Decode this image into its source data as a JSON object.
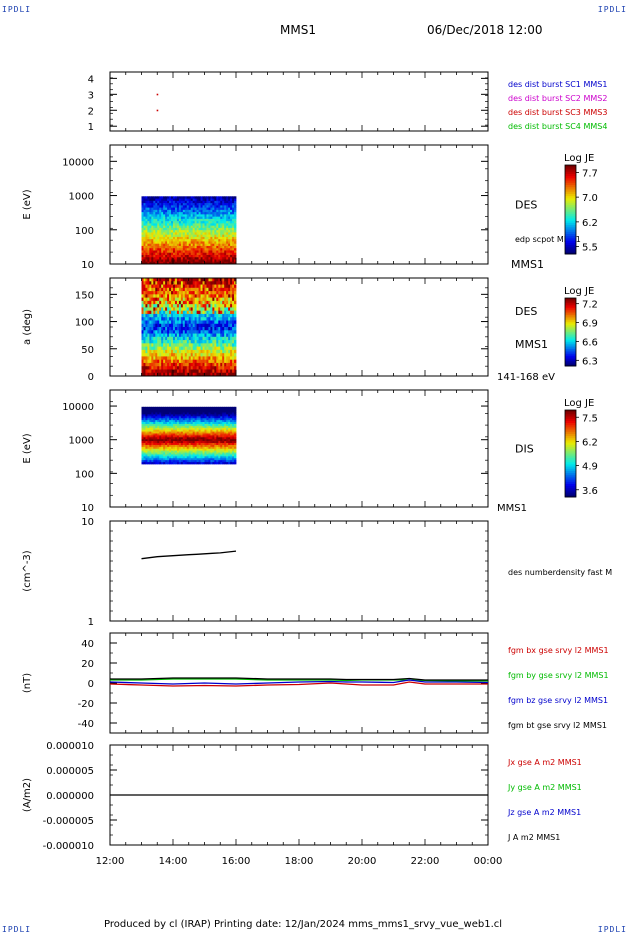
{
  "header": {
    "corner_tl": "IPDLI",
    "corner_tr": "IPDLI",
    "corner_bl": "IPDLI",
    "corner_br": "IPDLI",
    "spacecraft": "MMS1",
    "datetime": "06/Dec/2018 12:00"
  },
  "footer": {
    "text": "Produced by cl (IRAP)   Printing date: 12/Jan/2024   mms_mms1_srvy_vue_web1.cl"
  },
  "colors": {
    "blue": "#0000cc",
    "magenta": "#cc00cc",
    "red": "#cc0000",
    "green": "#00bb00",
    "black": "#000000"
  },
  "time_axis": {
    "start_hour": 12,
    "end_hour": 24,
    "tick_labels": [
      "12:00",
      "14:00",
      "16:00",
      "18:00",
      "20:00",
      "22:00",
      "00:00"
    ]
  },
  "chart_data": [
    {
      "type": "scatter",
      "ylabel": "",
      "ylim": [
        0.7,
        4.4
      ],
      "ytick_labels": [
        "1",
        "2",
        "3",
        "4"
      ],
      "ytick_values": [
        1,
        2,
        3,
        4
      ],
      "points": [
        {
          "t": 13.5,
          "y": 3.0,
          "color": "red"
        },
        {
          "t": 13.5,
          "y": 2.0,
          "color": "red"
        }
      ],
      "legend": [
        {
          "label": "des dist burst SC1 MMS1",
          "color": "blue"
        },
        {
          "label": "des dist burst SC2 MMS2",
          "color": "magenta"
        },
        {
          "label": "des dist burst SC3 MMS3",
          "color": "red"
        },
        {
          "label": "des dist burst SC4 MMS4",
          "color": "green"
        }
      ]
    },
    {
      "type": "heatmap",
      "ylabel": "E (eV)",
      "yscale": "log",
      "ylim": [
        10,
        30000
      ],
      "ytick_labels": [
        "10",
        "100",
        "1000",
        "10000"
      ],
      "ytick_values": [
        10,
        100,
        1000,
        10000
      ],
      "data_t_range": [
        13.0,
        16.0
      ],
      "data_y_range": [
        10,
        950
      ],
      "pattern": "energy",
      "side_labels": [
        {
          "text": "DES",
          "pos": "mid"
        },
        {
          "text": "edp scpot MMS1",
          "pos": "low",
          "small": true
        }
      ],
      "colorbar": {
        "title": "Log JE",
        "ticks": [
          "7.7",
          "7.0",
          "6.2",
          "5.5"
        ]
      }
    },
    {
      "type": "heatmap",
      "ylabel": "a (deg)",
      "yscale": "linear",
      "ylim": [
        0,
        180
      ],
      "ytick_labels": [
        "0",
        "50",
        "100",
        "150"
      ],
      "ytick_values": [
        0,
        50,
        100,
        150
      ],
      "data_t_range": [
        13.0,
        16.0
      ],
      "data_y_range": [
        0,
        180
      ],
      "pattern": "pitch",
      "side_labels": [
        {
          "text": "DES",
          "pos": "upper"
        },
        {
          "text": "MMS1",
          "pos": "lower"
        }
      ],
      "top_right_label": "MMS1",
      "bottom_right_label": "141-168 eV",
      "colorbar": {
        "title": "Log JE",
        "ticks": [
          "7.2",
          "6.9",
          "6.6",
          "6.3"
        ]
      }
    },
    {
      "type": "heatmap",
      "ylabel": "E (eV)",
      "yscale": "log",
      "ylim": [
        10,
        30000
      ],
      "ytick_labels": [
        "10",
        "100",
        "1000",
        "10000"
      ],
      "ytick_values": [
        10,
        100,
        1000,
        10000
      ],
      "data_t_range": [
        13.0,
        16.0
      ],
      "data_y_range": [
        190,
        9500
      ],
      "pattern": "ion",
      "side_labels": [
        {
          "text": "DIS",
          "pos": "mid"
        }
      ],
      "bottom_right_label": "MMS1",
      "colorbar": {
        "title": "Log JE",
        "ticks": [
          "7.5",
          "6.2",
          "4.9",
          "3.6"
        ]
      }
    },
    {
      "type": "line",
      "ylabel": "(cm^-3)",
      "yscale": "log",
      "ylim": [
        1,
        10
      ],
      "ytick_labels": [
        "1",
        "10"
      ],
      "ytick_values": [
        1,
        10
      ],
      "series": [
        {
          "name": "des numberdensity fast MMS1",
          "color": "black",
          "t": [
            13.0,
            13.25,
            13.5,
            13.75,
            14.0,
            14.25,
            14.5,
            14.75,
            15.0,
            15.25,
            15.5,
            15.75,
            16.0
          ],
          "values": [
            4.2,
            4.3,
            4.4,
            4.45,
            4.5,
            4.55,
            4.6,
            4.65,
            4.7,
            4.75,
            4.8,
            4.9,
            5.0
          ]
        }
      ],
      "legend": [
        {
          "label": "des numberdensity fast M",
          "color": "black"
        }
      ]
    },
    {
      "type": "line",
      "ylabel": "(nT)",
      "yscale": "linear",
      "ylim": [
        -50,
        50
      ],
      "ytick_labels": [
        "-40",
        "-20",
        "0",
        "20",
        "40"
      ],
      "ytick_values": [
        -40,
        -20,
        0,
        20,
        40
      ],
      "series": [
        {
          "name": "fgm bx gse srvy l2 MMS1",
          "color": "red",
          "t": [
            12,
            13,
            14,
            15,
            16,
            17,
            18,
            19,
            19.5,
            20,
            21,
            21.5,
            22,
            23,
            24
          ],
          "values": [
            -1,
            -2,
            -3,
            -2.5,
            -3,
            -2,
            -1.5,
            0,
            -1,
            -2,
            -2,
            1,
            -1,
            -1,
            -1
          ]
        },
        {
          "name": "fgm by gse srvy l2 MMS1",
          "color": "green",
          "t": [
            12,
            13,
            14,
            15,
            16,
            17,
            18,
            19,
            19.5,
            20,
            21,
            21.5,
            22,
            23,
            24
          ],
          "values": [
            3,
            3,
            4,
            4,
            4,
            3,
            3,
            3,
            2.5,
            3,
            3,
            3,
            2.5,
            2,
            2
          ]
        },
        {
          "name": "fgm bz gse srvy l2 MMS1",
          "color": "blue",
          "t": [
            12,
            13,
            14,
            15,
            16,
            17,
            18,
            19,
            19.5,
            20,
            21,
            21.5,
            22,
            23,
            24
          ],
          "values": [
            1,
            0,
            -1,
            0,
            -1,
            0,
            1,
            1.5,
            1,
            1,
            0.5,
            3,
            1,
            1,
            0.5
          ]
        },
        {
          "name": "fgm bt gse srvy l2 MMS1",
          "color": "black",
          "t": [
            12,
            13,
            14,
            15,
            16,
            17,
            18,
            19,
            19.5,
            20,
            21,
            21.5,
            22,
            23,
            24
          ],
          "values": [
            4,
            4,
            5,
            5,
            5,
            4,
            4,
            4,
            3.5,
            3.5,
            3.5,
            4.5,
            3,
            3,
            3
          ]
        }
      ],
      "legend": [
        {
          "label": "fgm bx gse srvy l2 MMS1",
          "color": "red"
        },
        {
          "label": "fgm by gse srvy l2 MMS1",
          "color": "green"
        },
        {
          "label": "fgm bz gse srvy l2 MMS1",
          "color": "blue"
        },
        {
          "label": "fgm bt gse srvy l2 MMS1",
          "color": "black"
        }
      ]
    },
    {
      "type": "line",
      "ylabel": "(A/m2)",
      "yscale": "linear",
      "ylim": [
        -1e-05,
        1e-05
      ],
      "ytick_labels": [
        "-0.000010",
        "-0.000005",
        "0.000000",
        "0.000005",
        "0.000010"
      ],
      "ytick_values": [
        -1e-05,
        -5e-06,
        0,
        5e-06,
        1e-05
      ],
      "series": [
        {
          "name": "J A m2 MMS1",
          "color": "black",
          "t": [
            12,
            24
          ],
          "values": [
            0,
            0
          ]
        }
      ],
      "legend": [
        {
          "label": "Jx gse A m2 MMS1",
          "color": "red"
        },
        {
          "label": "Jy gse A m2 MMS1",
          "color": "green"
        },
        {
          "label": "Jz gse A m2 MMS1",
          "color": "blue"
        },
        {
          "label": "J A m2 MMS1",
          "color": "black"
        }
      ]
    }
  ]
}
